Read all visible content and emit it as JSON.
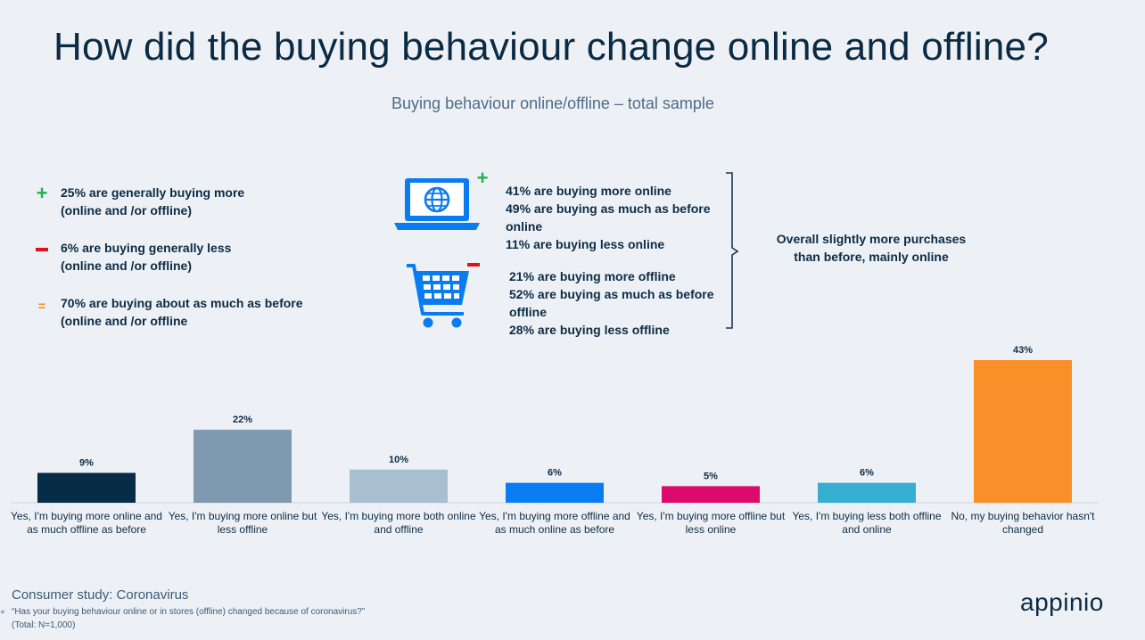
{
  "title": "How did the buying behaviour change online and offline?",
  "subtitle": "Buying behaviour online/offline – total sample",
  "summary": [
    {
      "symbol": "+",
      "line1": "25% are generally buying more",
      "line2": "(online and /or offline)",
      "color": "#22b14c"
    },
    {
      "symbol": "−",
      "line1": "6% are buying generally less",
      "line2": "(online and /or offline)",
      "color": "#e0101e"
    },
    {
      "symbol": "=",
      "line1": "70% are buying about as much as before",
      "line2": "(online and /or offline",
      "color": "#f28a1e"
    }
  ],
  "icons": {
    "online": "laptop-globe-icon",
    "offline": "shopping-cart-icon",
    "online_badge": "+",
    "offline_badge": "−"
  },
  "online": {
    "l1": "41% are buying more online",
    "l2": "49% are buying as much as before",
    "l3": "online",
    "l4": "11% are buying less online"
  },
  "offline": {
    "l1": "21% are buying more offline",
    "l2": "52% are buying as much as before",
    "l3": "offline",
    "l4": "28% are buying less offline"
  },
  "conclusion": {
    "l1": "Overall slightly more purchases",
    "l2": "than before, mainly online"
  },
  "chart_data": {
    "type": "bar",
    "categories": [
      "Yes, I'm buying more online and as much offline as before",
      "Yes, I'm buying more online but less offline",
      "Yes, I'm buying more both online and offline",
      "Yes, I'm buying more offline and as much online as before",
      "Yes, I'm buying more offline but less online",
      "Yes, I'm buying less both offline and online",
      "No, my buying behavior hasn't changed"
    ],
    "category_lines": [
      [
        "Yes, I'm buying more online and",
        "as much offline as before"
      ],
      [
        "Yes, I'm buying more online but",
        "less offline"
      ],
      [
        "Yes, I'm buying more both online",
        "and offline"
      ],
      [
        "Yes, I'm buying more offline and",
        "as much online as before"
      ],
      [
        "Yes, I'm buying more offline but",
        "less online"
      ],
      [
        "Yes, I'm buying less both offline",
        "and online"
      ],
      [
        "No, my buying behavior hasn't",
        "changed"
      ]
    ],
    "values": [
      9,
      22,
      10,
      6,
      5,
      6,
      43
    ],
    "value_labels": [
      "9%",
      "22%",
      "10%",
      "6%",
      "5%",
      "6%",
      "43%"
    ],
    "colors": [
      "#062c47",
      "#7e99b0",
      "#a8bfcf",
      "#0a7cf2",
      "#dc0b6b",
      "#36aed2",
      "#f98f29"
    ],
    "ylim": [
      0,
      43
    ],
    "title": "",
    "xlabel": "",
    "ylabel": ""
  },
  "footer": {
    "study": "Consumer study: Coronavirus",
    "question": "“Has your buying behaviour online or in stores (offline) changed because of coronavirus?”",
    "total": "(Total: N=1,000)",
    "mark": "+"
  },
  "logo": "appinio"
}
